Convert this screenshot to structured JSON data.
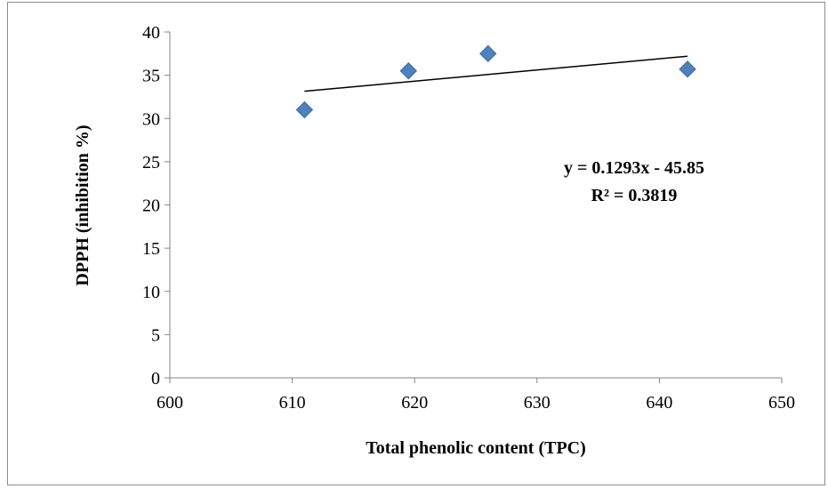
{
  "chart_data": {
    "type": "scatter",
    "title": "",
    "xlabel": "Total phenolic content (TPC)",
    "ylabel": "DPPH  (inhibition %)",
    "xlim": [
      600,
      650
    ],
    "ylim": [
      0,
      40
    ],
    "xticks": [
      600,
      610,
      620,
      630,
      640,
      650
    ],
    "yticks": [
      0,
      5,
      10,
      15,
      20,
      25,
      30,
      35,
      40
    ],
    "grid": false,
    "series": [
      {
        "x": [
          611,
          619.5,
          626,
          642.3
        ],
        "y": [
          31,
          35.5,
          37.5,
          35.7
        ],
        "marker": "diamond",
        "color": "#4f81bd"
      }
    ],
    "trendline": {
      "type": "linear",
      "x_range": [
        611,
        642.3
      ],
      "y_range": [
        33.15,
        37.2
      ],
      "color": "#000000",
      "equation": "y = 0.1293x - 45.85",
      "r_squared": "R² = 0.3819"
    }
  }
}
